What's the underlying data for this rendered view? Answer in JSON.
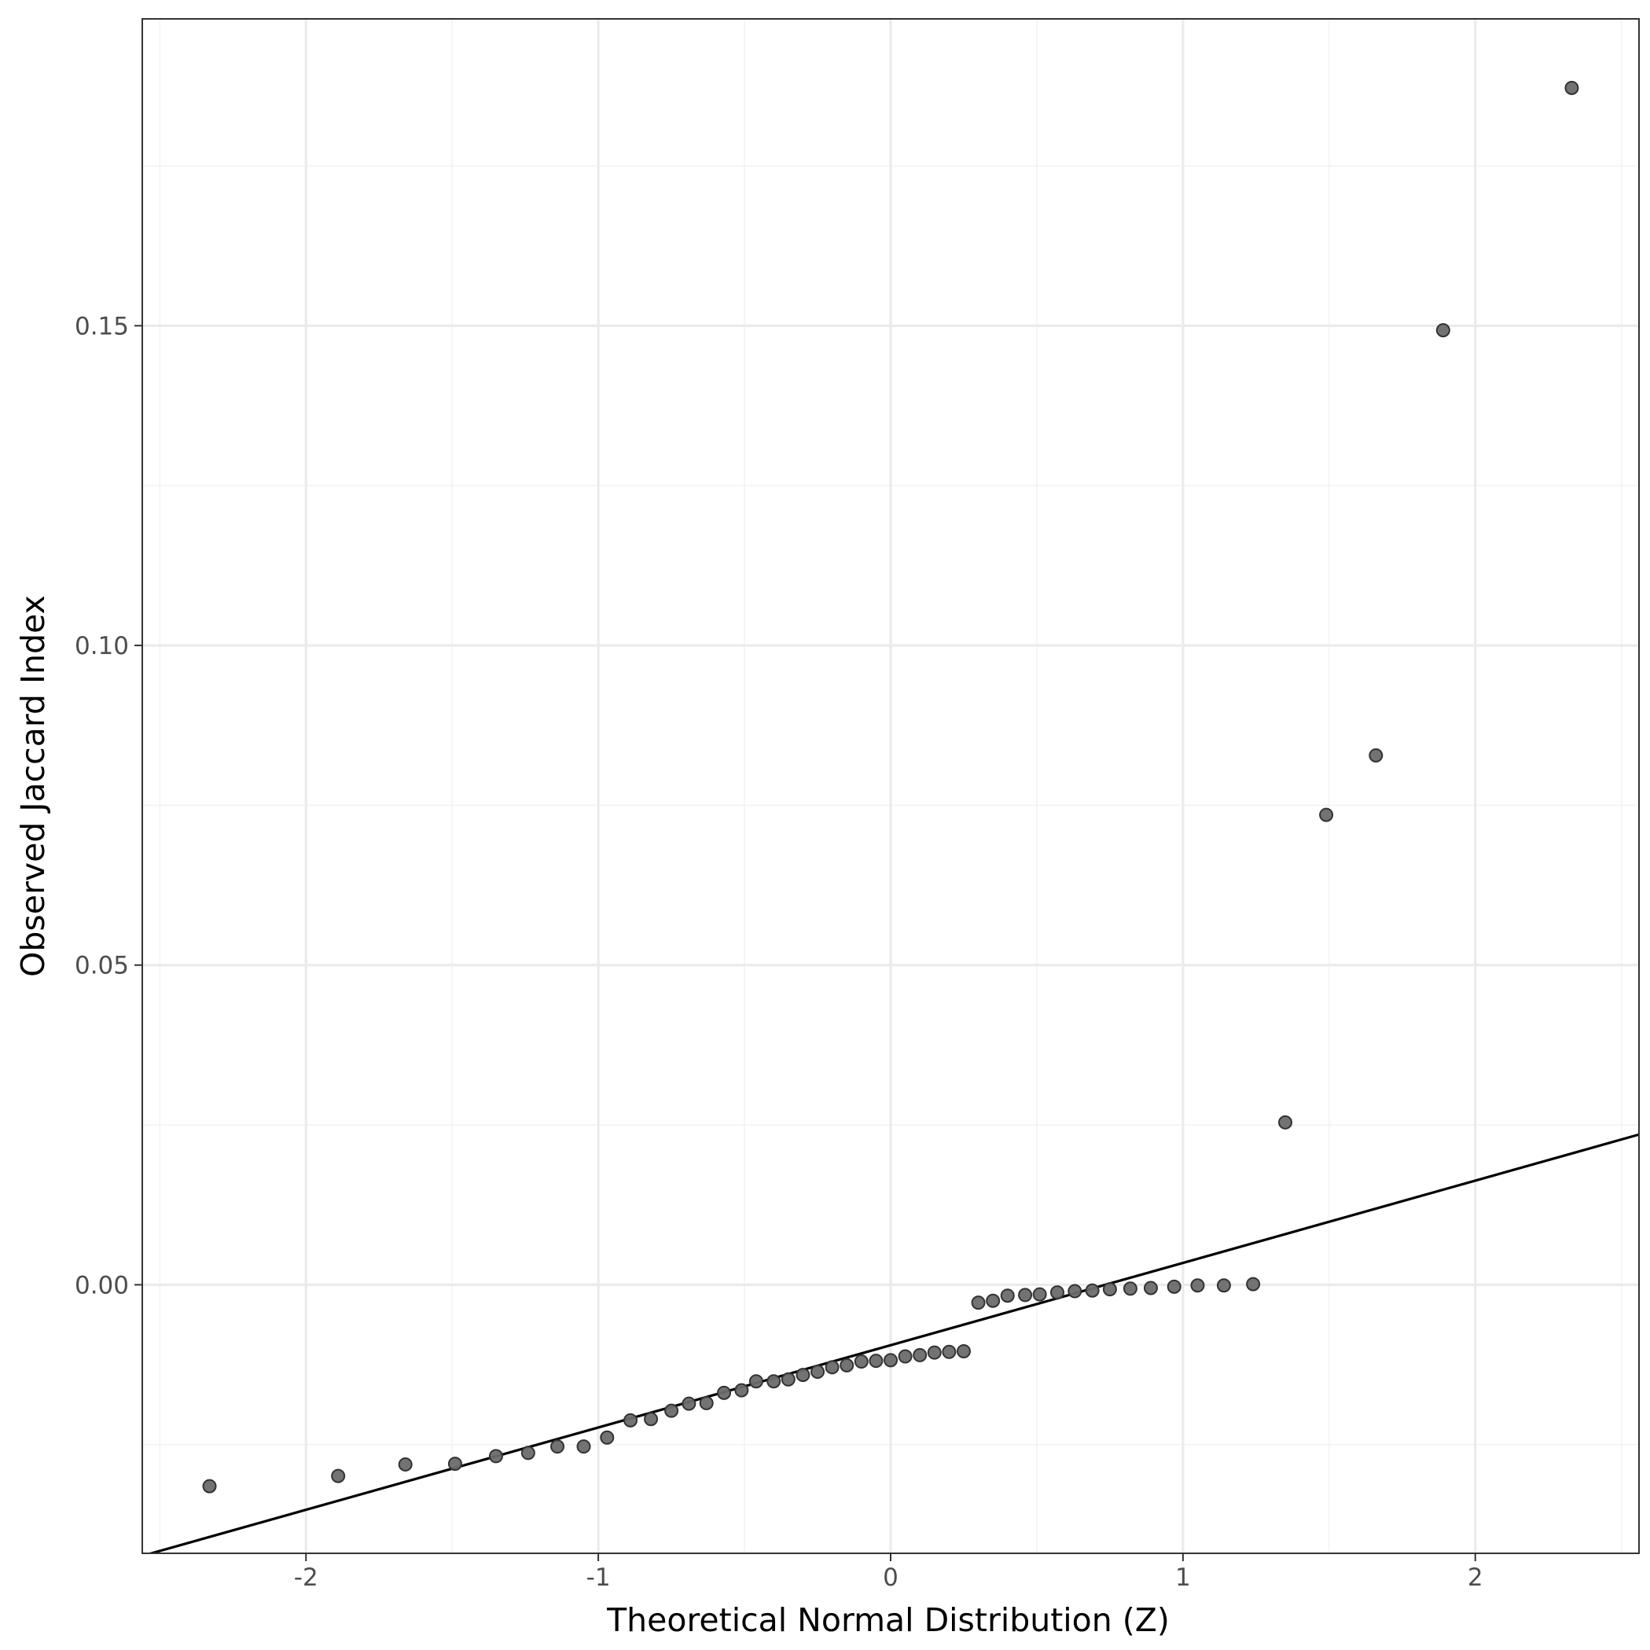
{
  "chart_data": {
    "type": "scatter",
    "title": "",
    "xlabel": "Theoretical Normal Distribution (Z)",
    "ylabel": "Observed Jaccard Index",
    "xlim": [
      -2.56,
      2.56
    ],
    "ylim": [
      -0.042,
      0.198
    ],
    "x_ticks": [
      -2,
      -1,
      0,
      1,
      2
    ],
    "x_tick_labels": [
      "-2",
      "-1",
      "0",
      "1",
      "2"
    ],
    "x_minor_ticks": [
      -2.5,
      -1.5,
      -0.5,
      0.5,
      1.5,
      2.5
    ],
    "y_ticks": [
      0.0,
      0.05,
      0.1,
      0.15
    ],
    "y_tick_labels": [
      "0.00",
      "0.05",
      "0.10",
      "0.15"
    ],
    "y_minor_ticks": [
      -0.025,
      0.025,
      0.075,
      0.125,
      0.175
    ],
    "grid": true,
    "colors": {
      "point_fill": "#6b6b6b",
      "point_stroke": "#333333",
      "reference_line": "#000000",
      "panel_border": "#333333",
      "grid_major": "#ebebeb",
      "grid_minor": "#f3f3f3"
    },
    "reference_line": {
      "x": [
        -2.56,
        2.56
      ],
      "y": [
        -0.0424,
        0.0235
      ]
    },
    "points": {
      "x": [
        -2.33,
        -1.89,
        -1.66,
        -1.49,
        -1.35,
        -1.24,
        -1.14,
        -1.05,
        -0.97,
        -0.89,
        -0.82,
        -0.75,
        -0.69,
        -0.63,
        -0.57,
        -0.51,
        -0.46,
        -0.4,
        -0.35,
        -0.3,
        -0.25,
        -0.2,
        -0.15,
        -0.1,
        -0.05,
        0.0,
        0.05,
        0.1,
        0.15,
        0.2,
        0.25,
        0.3,
        0.35,
        0.4,
        0.46,
        0.51,
        0.57,
        0.63,
        0.69,
        0.75,
        0.82,
        0.89,
        0.97,
        1.05,
        1.14,
        1.24,
        1.35,
        1.49,
        1.66,
        1.89,
        2.33
      ],
      "y": [
        -0.0315,
        -0.0299,
        -0.0281,
        -0.028,
        -0.0268,
        -0.0263,
        -0.0253,
        -0.0253,
        -0.0239,
        -0.0212,
        -0.021,
        -0.0197,
        -0.0186,
        -0.0185,
        -0.0169,
        -0.0165,
        -0.0151,
        -0.0151,
        -0.0148,
        -0.0141,
        -0.0136,
        -0.0129,
        -0.0126,
        -0.012,
        -0.0119,
        -0.0118,
        -0.0112,
        -0.011,
        -0.0106,
        -0.0105,
        -0.0104,
        -0.0028,
        -0.0025,
        -0.0017,
        -0.0016,
        -0.0015,
        -0.0012,
        -0.001,
        -0.0009,
        -0.0007,
        -0.0006,
        -0.0005,
        -0.0003,
        -0.0001,
        -0.0001,
        0.0001,
        0.0254,
        0.0735,
        0.0828,
        0.1493,
        0.1872
      ]
    }
  }
}
